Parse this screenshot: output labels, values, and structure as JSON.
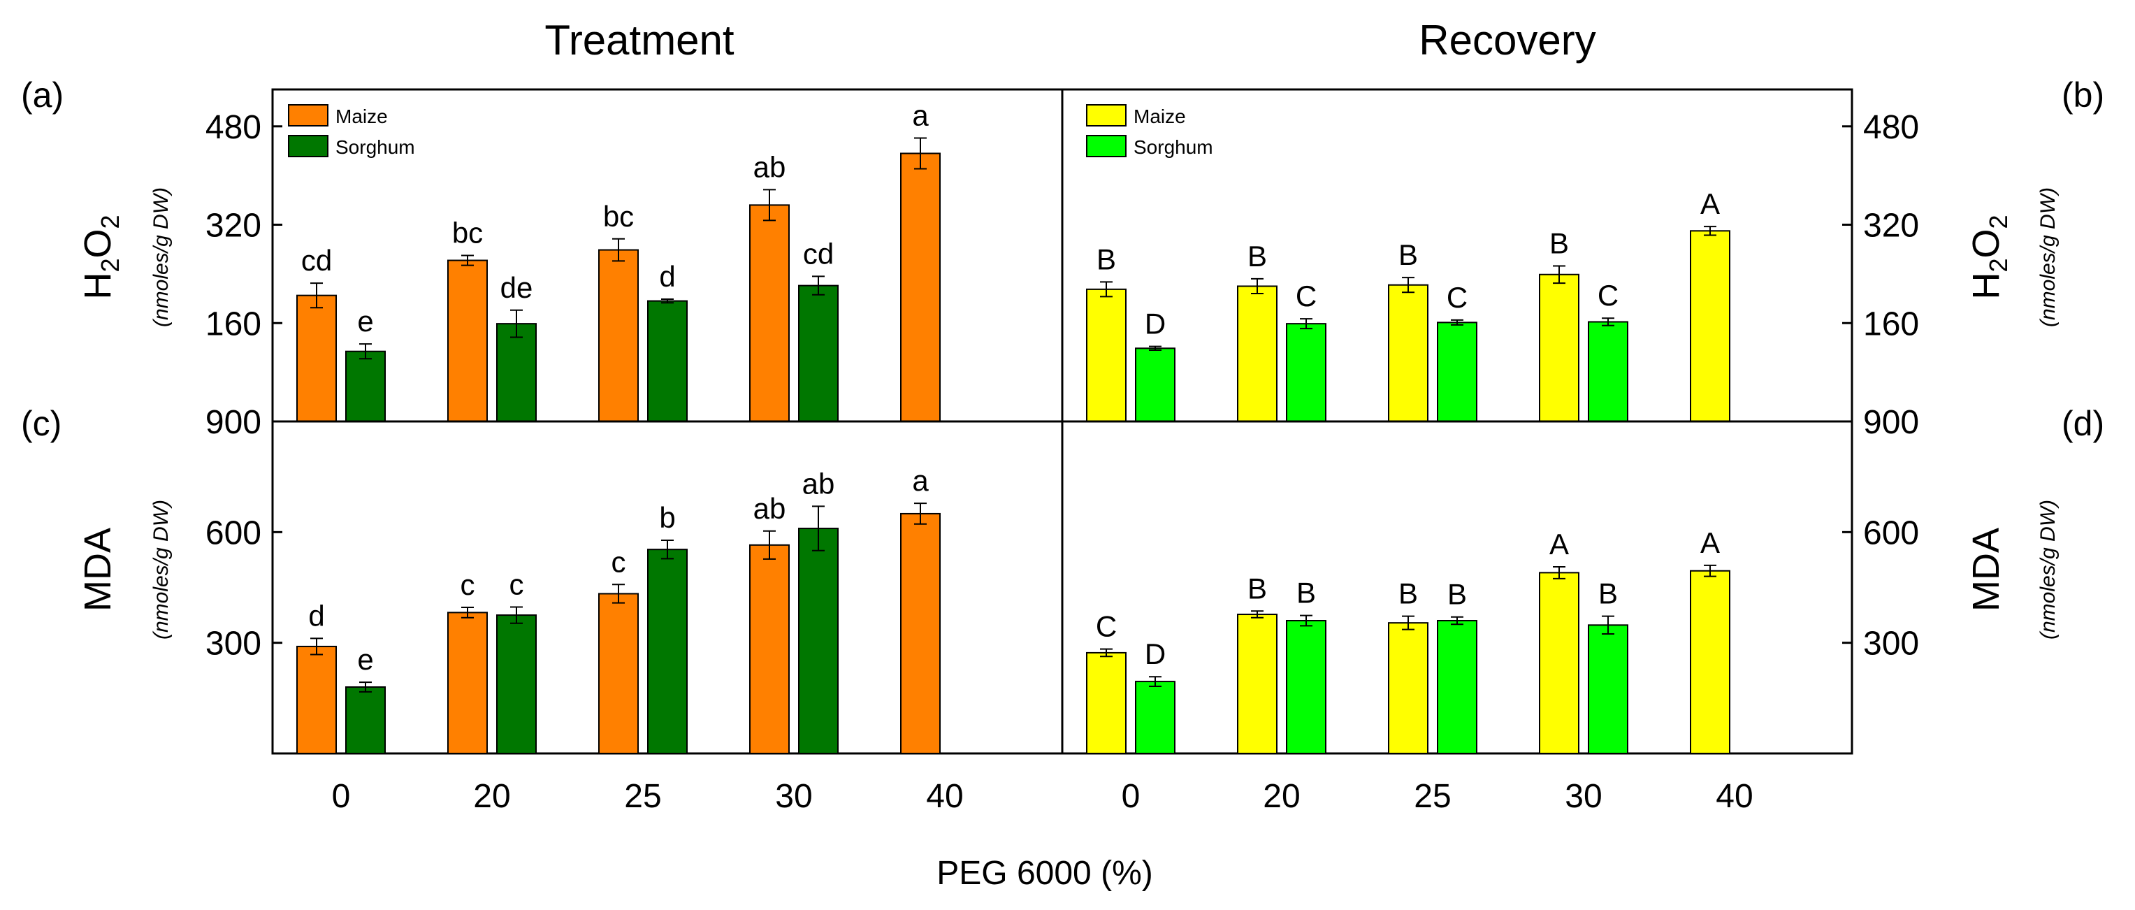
{
  "titles": {
    "left": "Treatment",
    "right": "Recovery"
  },
  "panel_labels": {
    "a": "(a)",
    "b": "(b)",
    "c": "(c)",
    "d": "(d)"
  },
  "xlabel": "PEG 6000 (%)",
  "ylabel_top": {
    "main": "H",
    "sub": "2",
    "main2": "O",
    "sub2": "2",
    "unit": "(nmoles/g DW)"
  },
  "ylabel_bottom": {
    "main": "MDA",
    "unit": "(nmoles/g DW)"
  },
  "legend": {
    "treatment": [
      "Maize",
      "Sorghum"
    ],
    "recovery": [
      "Maize",
      "Sorghum"
    ]
  },
  "colors": {
    "treatment_maize": "#FF8000",
    "treatment_sorghum": "#007700",
    "recovery_maize": "#FFFF00",
    "recovery_sorghum": "#00FF00"
  },
  "chart_data": [
    {
      "panel": "a",
      "type": "bar",
      "title": "Treatment",
      "categories": [
        "0",
        "20",
        "25",
        "30",
        "40"
      ],
      "xlabel": "PEG 6000 (%)",
      "ylabel": "H2O2 (nmoles/g DW)",
      "ylim": [
        0,
        540
      ],
      "yticks": [
        160,
        320,
        480
      ],
      "extra_tick_label": "900",
      "series": [
        {
          "name": "Maize",
          "values": [
            205,
            262,
            279,
            352,
            436
          ],
          "errors": [
            20,
            8,
            18,
            25,
            25
          ],
          "labels": [
            "cd",
            "bc",
            "bc",
            "ab",
            "a"
          ]
        },
        {
          "name": "Sorghum",
          "values": [
            114,
            159,
            196,
            221,
            null
          ],
          "errors": [
            12,
            22,
            3,
            15,
            null
          ],
          "labels": [
            "e",
            "de",
            "d",
            "cd",
            null
          ]
        }
      ]
    },
    {
      "panel": "b",
      "type": "bar",
      "title": "Recovery",
      "categories": [
        "0",
        "20",
        "25",
        "30",
        "40"
      ],
      "xlabel": "PEG 6000 (%)",
      "ylabel": "H2O2 (nmoles/g DW)",
      "ylim": [
        0,
        540
      ],
      "yticks": [
        160,
        320,
        480
      ],
      "extra_tick_label": "900",
      "series": [
        {
          "name": "Maize",
          "values": [
            215,
            220,
            222,
            239,
            310
          ],
          "errors": [
            12,
            12,
            12,
            14,
            7
          ],
          "labels": [
            "B",
            "B",
            "B",
            "B",
            "A"
          ]
        },
        {
          "name": "Sorghum",
          "values": [
            119,
            159,
            161,
            162,
            null
          ],
          "errors": [
            3,
            8,
            4,
            6,
            null
          ],
          "labels": [
            "D",
            "C",
            "C",
            "C",
            null
          ]
        }
      ]
    },
    {
      "panel": "c",
      "type": "bar",
      "categories": [
        "0",
        "20",
        "25",
        "30",
        "40"
      ],
      "xlabel": "PEG 6000 (%)",
      "ylabel": "MDA (nmoles/g DW)",
      "ylim": [
        0,
        900
      ],
      "yticks": [
        300,
        600
      ],
      "series": [
        {
          "name": "Maize",
          "values": [
            290,
            382,
            433,
            565,
            650
          ],
          "errors": [
            22,
            14,
            25,
            38,
            28
          ],
          "labels": [
            "d",
            "c",
            "c",
            "ab",
            "a"
          ]
        },
        {
          "name": "Sorghum",
          "values": [
            180,
            375,
            553,
            610,
            null
          ],
          "errors": [
            13,
            22,
            25,
            60,
            null
          ],
          "labels": [
            "e",
            "c",
            "b",
            "ab",
            null
          ]
        }
      ]
    },
    {
      "panel": "d",
      "type": "bar",
      "categories": [
        "0",
        "20",
        "25",
        "30",
        "40"
      ],
      "xlabel": "PEG 6000 (%)",
      "ylabel": "MDA (nmoles/g DW)",
      "ylim": [
        0,
        900
      ],
      "yticks": [
        300,
        600
      ],
      "series": [
        {
          "name": "Maize",
          "values": [
            273,
            377,
            354,
            490,
            495
          ],
          "errors": [
            10,
            9,
            18,
            16,
            15
          ],
          "labels": [
            "C",
            "B",
            "B",
            "A",
            "A"
          ]
        },
        {
          "name": "Sorghum",
          "values": [
            195,
            360,
            360,
            348,
            null
          ],
          "errors": [
            13,
            14,
            10,
            24,
            null
          ],
          "labels": [
            "D",
            "B",
            "B",
            "B",
            null
          ]
        }
      ]
    }
  ]
}
